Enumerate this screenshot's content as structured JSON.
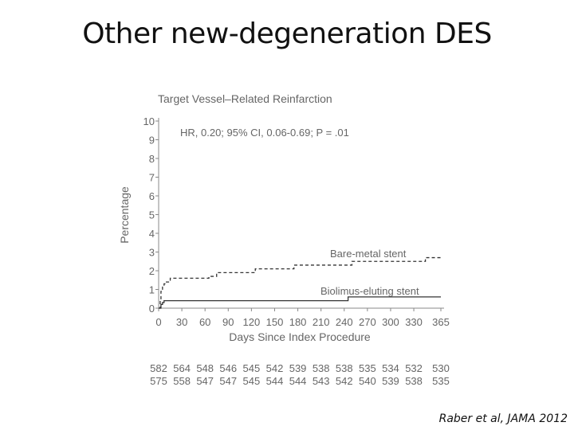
{
  "slide": {
    "title": "Other new-degeneration DES",
    "citation": "Raber et al, JAMA 2012"
  },
  "chart_data": {
    "type": "line",
    "title": "Target Vessel–Related Reinfarction",
    "annotation": "HR, 0.20; 95% CI, 0.06-0.69; P = .01",
    "xlabel": "Days Since Index Procedure",
    "ylabel": "Percentage",
    "xlim": [
      0,
      365
    ],
    "ylim": [
      0,
      10
    ],
    "x_ticks": [
      0,
      30,
      60,
      90,
      120,
      150,
      180,
      210,
      240,
      270,
      300,
      330,
      365
    ],
    "y_ticks": [
      0,
      1,
      2,
      3,
      4,
      5,
      6,
      7,
      8,
      9,
      10
    ],
    "grid": false,
    "legend": "inline labels next to curves",
    "series": [
      {
        "name": "Bare-metal stent",
        "style": "dashed",
        "color": "#333333",
        "x": [
          0,
          2,
          3,
          5,
          7,
          10,
          15,
          60,
          65,
          75,
          120,
          125,
          170,
          175,
          240,
          250,
          340,
          345,
          365
        ],
        "y": [
          0,
          0.5,
          0.9,
          1.2,
          1.3,
          1.4,
          1.6,
          1.6,
          1.7,
          1.9,
          1.9,
          2.1,
          2.1,
          2.3,
          2.3,
          2.5,
          2.5,
          2.7,
          2.7
        ]
      },
      {
        "name": "Biolimus-eluting stent",
        "style": "solid",
        "color": "#333333",
        "x": [
          0,
          3,
          5,
          7,
          240,
          245,
          365
        ],
        "y": [
          0,
          0.2,
          0.3,
          0.4,
          0.4,
          0.6,
          0.6
        ]
      }
    ],
    "at_risk": {
      "bare_metal": [
        582,
        564,
        548,
        546,
        545,
        542,
        539,
        538,
        538,
        535,
        534,
        532,
        530
      ],
      "biolimus": [
        575,
        558,
        547,
        547,
        545,
        544,
        544,
        543,
        542,
        540,
        539,
        538,
        535
      ]
    }
  }
}
